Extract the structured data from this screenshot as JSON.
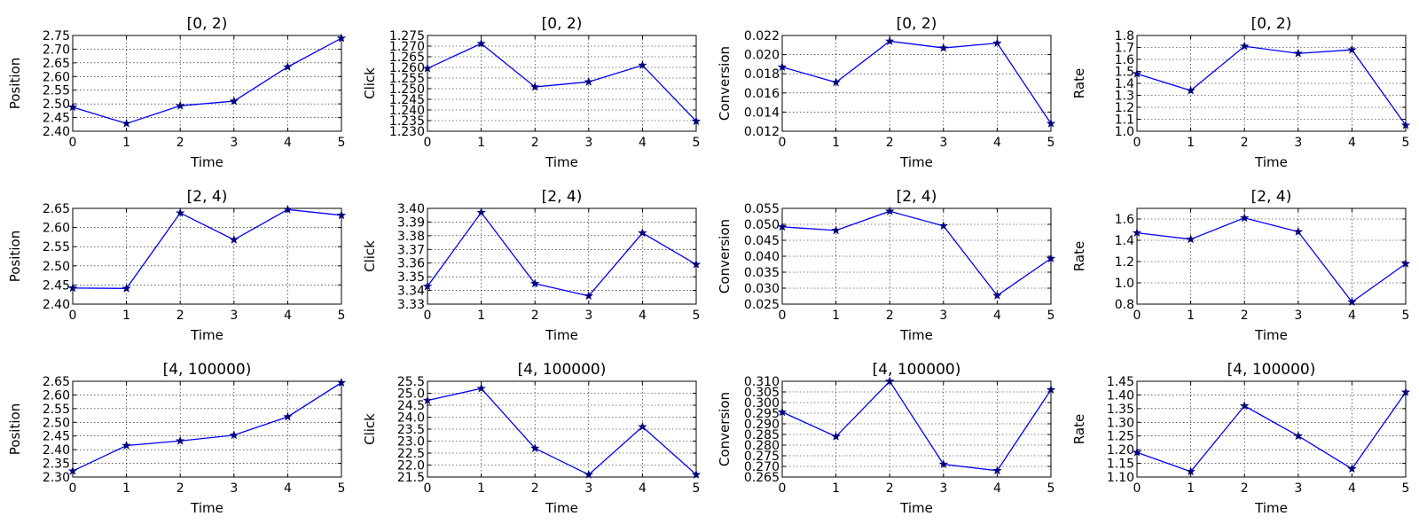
{
  "chart_data": [
    {
      "type": "line",
      "title": "[0, 2)",
      "xlabel": "Time",
      "ylabel": "Position",
      "x": [
        0,
        1,
        2,
        3,
        4,
        5
      ],
      "values": [
        2.488,
        2.428,
        2.493,
        2.51,
        2.635,
        2.74
      ],
      "xlim": [
        0,
        5
      ],
      "ylim": [
        2.4,
        2.75
      ],
      "xticks": [
        "0",
        "1",
        "2",
        "3",
        "4",
        "5"
      ],
      "yticks": [
        "2.40",
        "2.45",
        "2.50",
        "2.55",
        "2.60",
        "2.65",
        "2.70",
        "2.75"
      ],
      "grid": true,
      "color": "#0000ff",
      "marker": "star"
    },
    {
      "type": "line",
      "title": "[0, 2)",
      "xlabel": "Time",
      "ylabel": "Click",
      "x": [
        0,
        1,
        2,
        3,
        4,
        5
      ],
      "values": [
        1.2595,
        1.2712,
        1.2508,
        1.2532,
        1.261,
        1.2347
      ],
      "xlim": [
        0,
        5
      ],
      "ylim": [
        1.23,
        1.275
      ],
      "xticks": [
        "0",
        "1",
        "2",
        "3",
        "4",
        "5"
      ],
      "yticks": [
        "1.230",
        "1.235",
        "1.240",
        "1.245",
        "1.250",
        "1.255",
        "1.260",
        "1.265",
        "1.270",
        "1.275"
      ],
      "grid": true,
      "color": "#0000ff",
      "marker": "star"
    },
    {
      "type": "line",
      "title": "[0, 2)",
      "xlabel": "Time",
      "ylabel": "Conversion",
      "x": [
        0,
        1,
        2,
        3,
        4,
        5
      ],
      "values": [
        0.0187,
        0.0171,
        0.0214,
        0.0207,
        0.0212,
        0.0128
      ],
      "xlim": [
        0,
        5
      ],
      "ylim": [
        0.012,
        0.022
      ],
      "xticks": [
        "0",
        "1",
        "2",
        "3",
        "4",
        "5"
      ],
      "yticks": [
        "0.012",
        "0.014",
        "0.016",
        "0.018",
        "0.020",
        "0.022"
      ],
      "grid": true,
      "color": "#0000ff",
      "marker": "star"
    },
    {
      "type": "line",
      "title": "[0, 2)",
      "xlabel": "Time",
      "ylabel": "Rate",
      "x": [
        0,
        1,
        2,
        3,
        4,
        5
      ],
      "values": [
        1.48,
        1.34,
        1.71,
        1.65,
        1.68,
        1.05
      ],
      "xlim": [
        0,
        5
      ],
      "ylim": [
        1.0,
        1.8
      ],
      "xticks": [
        "0",
        "1",
        "2",
        "3",
        "4",
        "5"
      ],
      "yticks": [
        "1.0",
        "1.1",
        "1.2",
        "1.3",
        "1.4",
        "1.5",
        "1.6",
        "1.7",
        "1.8"
      ],
      "grid": true,
      "color": "#0000ff",
      "marker": "star"
    },
    {
      "type": "line",
      "title": "[2, 4)",
      "xlabel": "Time",
      "ylabel": "Position",
      "x": [
        0,
        1,
        2,
        3,
        4,
        5
      ],
      "values": [
        2.442,
        2.441,
        2.638,
        2.568,
        2.647,
        2.632
      ],
      "xlim": [
        0,
        5
      ],
      "ylim": [
        2.4,
        2.65
      ],
      "xticks": [
        "0",
        "1",
        "2",
        "3",
        "4",
        "5"
      ],
      "yticks": [
        "2.40",
        "2.45",
        "2.50",
        "2.55",
        "2.60",
        "2.65"
      ],
      "grid": true,
      "color": "#0000ff",
      "marker": "star"
    },
    {
      "type": "line",
      "title": "[2, 4)",
      "xlabel": "Time",
      "ylabel": "Click",
      "x": [
        0,
        1,
        2,
        3,
        4,
        5
      ],
      "values": [
        3.343,
        3.397,
        3.345,
        3.336,
        3.382,
        3.359
      ],
      "xlim": [
        0,
        5
      ],
      "ylim": [
        3.33,
        3.4
      ],
      "xticks": [
        "0",
        "1",
        "2",
        "3",
        "4",
        "5"
      ],
      "yticks": [
        "3.33",
        "3.34",
        "3.35",
        "3.36",
        "3.37",
        "3.38",
        "3.39",
        "3.40"
      ],
      "grid": true,
      "color": "#0000ff",
      "marker": "star"
    },
    {
      "type": "line",
      "title": "[2, 4)",
      "xlabel": "Time",
      "ylabel": "Conversion",
      "x": [
        0,
        1,
        2,
        3,
        4,
        5
      ],
      "values": [
        0.0492,
        0.0481,
        0.0541,
        0.0495,
        0.0277,
        0.0393
      ],
      "xlim": [
        0,
        5
      ],
      "ylim": [
        0.025,
        0.055
      ],
      "xticks": [
        "0",
        "1",
        "2",
        "3",
        "4",
        "5"
      ],
      "yticks": [
        "0.025",
        "0.030",
        "0.035",
        "0.040",
        "0.045",
        "0.050",
        "0.055"
      ],
      "grid": true,
      "color": "#0000ff",
      "marker": "star"
    },
    {
      "type": "line",
      "title": "[2, 4)",
      "xlabel": "Time",
      "ylabel": "Rate",
      "x": [
        0,
        1,
        2,
        3,
        4,
        5
      ],
      "values": [
        1.47,
        1.41,
        1.61,
        1.48,
        0.82,
        1.18
      ],
      "xlim": [
        0,
        5
      ],
      "ylim": [
        0.8,
        1.7
      ],
      "xticks": [
        "0",
        "1",
        "2",
        "3",
        "4",
        "5"
      ],
      "yticks": [
        "0.8",
        "1.0",
        "1.2",
        "1.4",
        "1.6"
      ],
      "grid": true,
      "color": "#0000ff",
      "marker": "star"
    },
    {
      "type": "line",
      "title": "[4, 100000)",
      "xlabel": "Time",
      "ylabel": "Position",
      "x": [
        0,
        1,
        2,
        3,
        4,
        5
      ],
      "values": [
        2.322,
        2.415,
        2.432,
        2.453,
        2.52,
        2.645
      ],
      "xlim": [
        0,
        5
      ],
      "ylim": [
        2.3,
        2.65
      ],
      "xticks": [
        "0",
        "1",
        "2",
        "3",
        "4",
        "5"
      ],
      "yticks": [
        "2.30",
        "2.35",
        "2.40",
        "2.45",
        "2.50",
        "2.55",
        "2.60",
        "2.65"
      ],
      "grid": true,
      "color": "#0000ff",
      "marker": "star"
    },
    {
      "type": "line",
      "title": "[4, 100000)",
      "xlabel": "Time",
      "ylabel": "Click",
      "x": [
        0,
        1,
        2,
        3,
        4,
        5
      ],
      "values": [
        24.7,
        25.2,
        22.7,
        21.6,
        23.6,
        21.6
      ],
      "xlim": [
        0,
        5
      ],
      "ylim": [
        21.5,
        25.5
      ],
      "xticks": [
        "0",
        "1",
        "2",
        "3",
        "4",
        "5"
      ],
      "yticks": [
        "21.5",
        "22.0",
        "22.5",
        "23.0",
        "23.5",
        "24.0",
        "24.5",
        "25.0",
        "25.5"
      ],
      "grid": true,
      "color": "#0000ff",
      "marker": "star"
    },
    {
      "type": "line",
      "title": "[4, 100000)",
      "xlabel": "Time",
      "ylabel": "Conversion",
      "x": [
        0,
        1,
        2,
        3,
        4,
        5
      ],
      "values": [
        0.2955,
        0.284,
        0.31,
        0.271,
        0.268,
        0.306
      ],
      "xlim": [
        0,
        5
      ],
      "ylim": [
        0.265,
        0.31
      ],
      "xticks": [
        "0",
        "1",
        "2",
        "3",
        "4",
        "5"
      ],
      "yticks": [
        "0.265",
        "0.270",
        "0.275",
        "0.280",
        "0.285",
        "0.290",
        "0.295",
        "0.300",
        "0.305",
        "0.310"
      ],
      "grid": true,
      "color": "#0000ff",
      "marker": "star"
    },
    {
      "type": "line",
      "title": "[4, 100000)",
      "xlabel": "Time",
      "ylabel": "Rate",
      "x": [
        0,
        1,
        2,
        3,
        4,
        5
      ],
      "values": [
        1.19,
        1.12,
        1.36,
        1.25,
        1.13,
        1.41
      ],
      "xlim": [
        0,
        5
      ],
      "ylim": [
        1.1,
        1.45
      ],
      "xticks": [
        "0",
        "1",
        "2",
        "3",
        "4",
        "5"
      ],
      "yticks": [
        "1.10",
        "1.15",
        "1.20",
        "1.25",
        "1.30",
        "1.35",
        "1.40",
        "1.45"
      ],
      "grid": true,
      "color": "#0000ff",
      "marker": "star"
    }
  ]
}
